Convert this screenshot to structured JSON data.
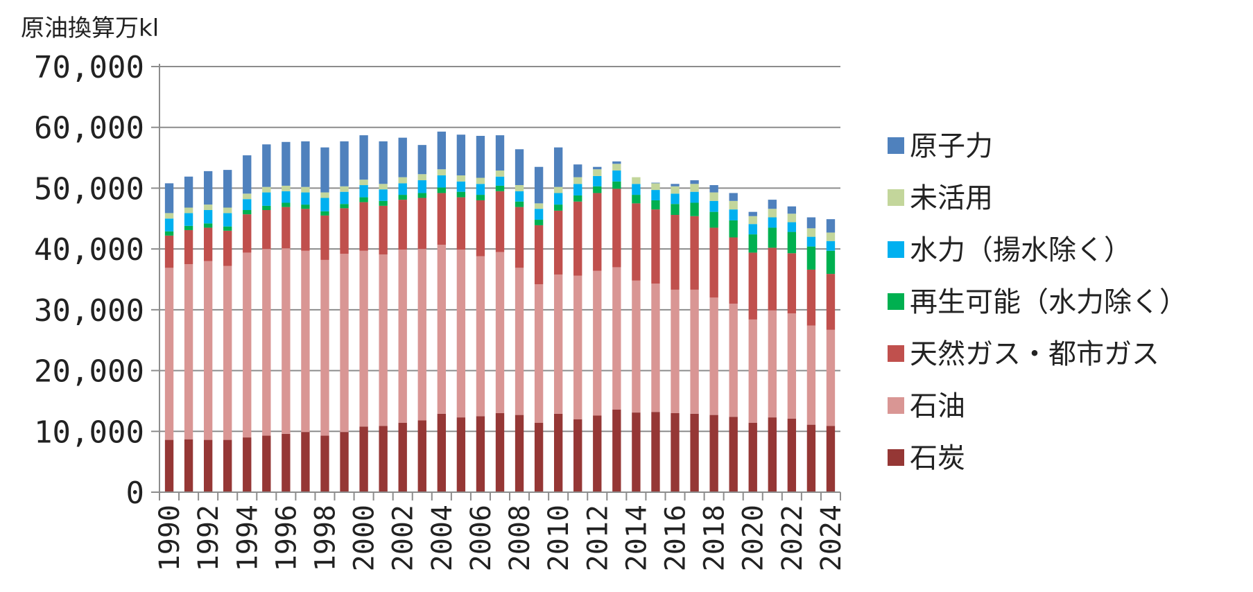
{
  "chart_data": {
    "type": "bar",
    "stacked": true,
    "unit_label": "原油換算万kl",
    "ylim": [
      0,
      70000
    ],
    "yticks": [
      0,
      10000,
      20000,
      30000,
      40000,
      50000,
      60000,
      70000
    ],
    "ytick_labels": [
      "0",
      "10,000",
      "20,000",
      "30,000",
      "40,000",
      "50,000",
      "60,000",
      "70,000"
    ],
    "x": [
      1990,
      1991,
      1992,
      1993,
      1994,
      1995,
      1996,
      1997,
      1998,
      1999,
      2000,
      2001,
      2002,
      2003,
      2004,
      2005,
      2006,
      2007,
      2008,
      2009,
      2010,
      2011,
      2012,
      2013,
      2014,
      2015,
      2016,
      2017,
      2018,
      2019,
      2020,
      2021,
      2022,
      2023,
      2024
    ],
    "xtick_labels": [
      "1990",
      "1992",
      "1994",
      "1996",
      "1998",
      "2000",
      "2002",
      "2004",
      "2006",
      "2008",
      "2010",
      "2012",
      "2014",
      "2016",
      "2018",
      "2020",
      "2022",
      "2024"
    ],
    "legend_position": "right",
    "series": [
      {
        "name": "石炭",
        "color": "#953735",
        "values": [
          8600,
          8700,
          8600,
          8600,
          9000,
          9300,
          9600,
          9900,
          9300,
          9900,
          10800,
          10900,
          11400,
          11800,
          12900,
          12300,
          12500,
          13000,
          12700,
          11400,
          12900,
          12000,
          12600,
          13600,
          13100,
          13200,
          13000,
          12900,
          12700,
          12400,
          11400,
          12300,
          12100,
          11100,
          10900
        ]
      },
      {
        "name": "石油",
        "color": "#d99694",
        "values": [
          28300,
          28800,
          29400,
          28600,
          30400,
          30700,
          30500,
          29800,
          28900,
          29300,
          28900,
          28200,
          28500,
          28200,
          27800,
          27600,
          26300,
          26500,
          24200,
          22800,
          22900,
          23600,
          23800,
          23400,
          21700,
          21100,
          20300,
          20400,
          19300,
          18600,
          17000,
          17600,
          17300,
          16300,
          15800
        ]
      },
      {
        "name": "天然ガス・都市ガス",
        "color": "#c0504d",
        "values": [
          5300,
          5600,
          5500,
          5800,
          6300,
          6400,
          6800,
          6900,
          7300,
          7500,
          8000,
          8000,
          8200,
          8400,
          8500,
          8600,
          9200,
          10000,
          10000,
          9700,
          10500,
          12200,
          12800,
          12900,
          12700,
          12200,
          12300,
          12100,
          11500,
          10900,
          11000,
          10300,
          9900,
          9200,
          9200
        ]
      },
      {
        "name": "再生可能（水力除く）",
        "color": "#00b050",
        "values": [
          700,
          700,
          700,
          700,
          700,
          700,
          700,
          700,
          700,
          700,
          800,
          800,
          800,
          800,
          900,
          900,
          900,
          900,
          900,
          900,
          1000,
          1000,
          1100,
          1200,
          1400,
          1500,
          1800,
          2200,
          2600,
          2800,
          3000,
          3300,
          3500,
          3800,
          3800
        ]
      },
      {
        "name": "水力（揚水除く）",
        "color": "#00b0f0",
        "values": [
          2100,
          2100,
          2200,
          2200,
          1800,
          2200,
          1900,
          2000,
          2200,
          2000,
          2000,
          1900,
          1900,
          2100,
          2000,
          1700,
          1800,
          1500,
          1700,
          1800,
          1900,
          1900,
          1700,
          1800,
          1800,
          1700,
          1700,
          1800,
          1800,
          1800,
          1700,
          1700,
          1600,
          1600,
          1600
        ]
      },
      {
        "name": "未活用",
        "color": "#c3d69b",
        "values": [
          900,
          900,
          900,
          900,
          900,
          900,
          900,
          900,
          900,
          900,
          900,
          900,
          1000,
          1000,
          1000,
          1000,
          1000,
          1000,
          1000,
          900,
          1000,
          1100,
          1100,
          1100,
          1100,
          1100,
          1200,
          1300,
          1400,
          1400,
          1300,
          1400,
          1400,
          1400,
          1400
        ]
      },
      {
        "name": "原子力",
        "color": "#4f81bd",
        "values": [
          4900,
          5100,
          5500,
          6200,
          6300,
          7000,
          7200,
          7500,
          7400,
          7400,
          7300,
          7000,
          6500,
          4800,
          6200,
          6700,
          6900,
          5800,
          5900,
          6000,
          6500,
          2100,
          400,
          400,
          0,
          100,
          400,
          600,
          1200,
          1300,
          700,
          1500,
          1200,
          1800,
          2200
        ]
      }
    ]
  }
}
